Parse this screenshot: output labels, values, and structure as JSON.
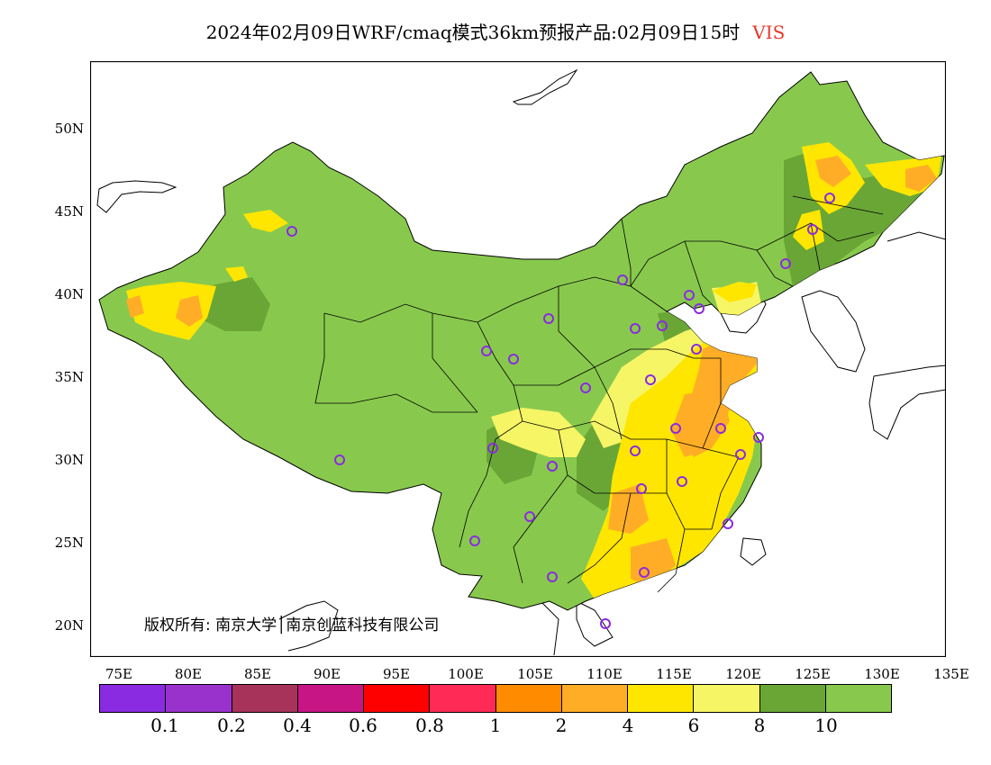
{
  "title": {
    "main": "2024年02月09日WRF/cmaq模式36km预报产品:02月09日15时",
    "variable": "VIS",
    "variable_color": "#e8382a"
  },
  "axes": {
    "y_ticks": [
      "50N",
      "45N",
      "40N",
      "35N",
      "30N",
      "25N",
      "20N"
    ],
    "x_ticks": [
      "75E",
      "80E",
      "85E",
      "90E",
      "95E",
      "100E",
      "105E",
      "110E",
      "115E",
      "120E",
      "125E",
      "130E",
      "135E"
    ]
  },
  "copyright": "版权所有: 南京大学│南京创蓝科技有限公司",
  "legend": {
    "colors": [
      "#8a2be2",
      "#9932cc",
      "#a8335a",
      "#c71585",
      "#ff0000",
      "#ff2a55",
      "#ff8c00",
      "#ffad26",
      "#ffe600",
      "#f6f565",
      "#6aa636",
      "#88c94d"
    ],
    "labels": [
      "0.1",
      "0.2",
      "0.4",
      "0.6",
      "0.8",
      "1",
      "2",
      "4",
      "6",
      "8",
      "10"
    ]
  },
  "colors": {
    "land_base": "#88c94d",
    "land_dark": "#6aa636",
    "haze_yellow": "#ffe600",
    "haze_light": "#f6f565",
    "haze_orange": "#ffad26",
    "station_marker": "#8a2be2"
  }
}
